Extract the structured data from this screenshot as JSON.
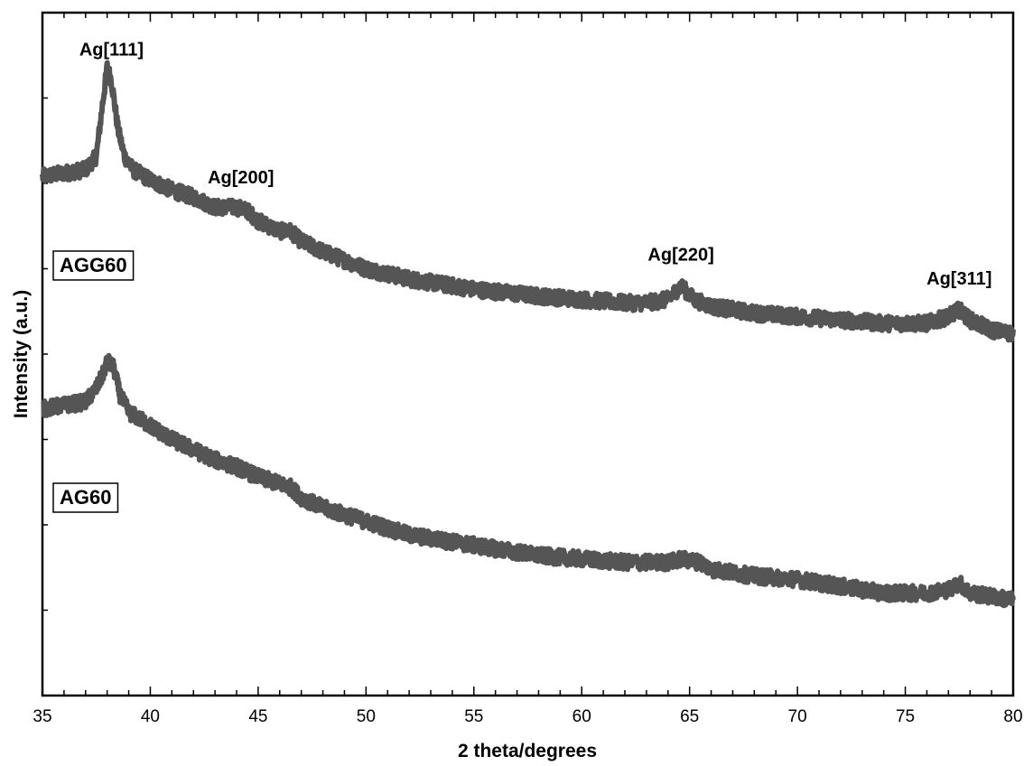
{
  "chart_data": {
    "type": "line",
    "title": "",
    "xlabel": "2 theta/degrees",
    "ylabel": "Intensity (a.u.)",
    "xlim": [
      35,
      80
    ],
    "x_ticks": [
      35,
      40,
      45,
      50,
      55,
      60,
      65,
      70,
      75,
      80
    ],
    "x_tick_labels": [
      "35",
      "40",
      "45",
      "50",
      "55",
      "60",
      "65",
      "70",
      "75",
      "80"
    ],
    "y_tick_labels": [],
    "grid": false,
    "legend": "none",
    "line_color": "#555555",
    "series": [
      {
        "name": "AGG60",
        "x": [
          35,
          36,
          37,
          37.5,
          37.8,
          38.0,
          38.2,
          38.5,
          38.8,
          39.2,
          40,
          41,
          42,
          43,
          44,
          44.5,
          45,
          46,
          46.5,
          47,
          48,
          50,
          52,
          55,
          58,
          60,
          62,
          63,
          64,
          64.6,
          65.2,
          66,
          68,
          70,
          72,
          74,
          75,
          76,
          77,
          77.5,
          78,
          79,
          80
        ],
        "y": [
          0.76,
          0.765,
          0.77,
          0.79,
          0.87,
          0.92,
          0.9,
          0.83,
          0.79,
          0.77,
          0.755,
          0.74,
          0.73,
          0.715,
          0.715,
          0.71,
          0.695,
          0.68,
          0.68,
          0.665,
          0.65,
          0.625,
          0.61,
          0.595,
          0.585,
          0.58,
          0.575,
          0.575,
          0.58,
          0.6,
          0.58,
          0.57,
          0.56,
          0.555,
          0.55,
          0.545,
          0.545,
          0.545,
          0.555,
          0.565,
          0.55,
          0.535,
          0.53
        ]
      },
      {
        "name": "AG60",
        "x": [
          35,
          36,
          37,
          37.5,
          37.8,
          38.0,
          38.3,
          38.6,
          39,
          40,
          41,
          42,
          43,
          44,
          45,
          46,
          46.5,
          47,
          48,
          50,
          52,
          55,
          58,
          60,
          62,
          64,
          64.6,
          65.5,
          66,
          68,
          70,
          72,
          74,
          76,
          77,
          77.5,
          78,
          79,
          80
        ],
        "y": [
          0.42,
          0.425,
          0.43,
          0.45,
          0.47,
          0.49,
          0.48,
          0.44,
          0.415,
          0.395,
          0.375,
          0.36,
          0.345,
          0.335,
          0.32,
          0.31,
          0.305,
          0.29,
          0.275,
          0.255,
          0.235,
          0.22,
          0.205,
          0.2,
          0.195,
          0.195,
          0.2,
          0.195,
          0.185,
          0.175,
          0.17,
          0.16,
          0.15,
          0.15,
          0.155,
          0.165,
          0.15,
          0.145,
          0.14
        ]
      }
    ],
    "annotations": [
      {
        "text": "Ag[111]",
        "x": 38.2,
        "series": "AGG60"
      },
      {
        "text": "Ag[200]",
        "x": 44.2,
        "series": "AGG60"
      },
      {
        "text": "Ag[220]",
        "x": 64.6,
        "series": "AGG60"
      },
      {
        "text": "Ag[311]",
        "x": 77.5,
        "series": "AGG60"
      }
    ],
    "sample_labels": [
      {
        "text": "AGG60",
        "series": "AGG60"
      },
      {
        "text": "AG60",
        "series": "AG60"
      }
    ]
  }
}
